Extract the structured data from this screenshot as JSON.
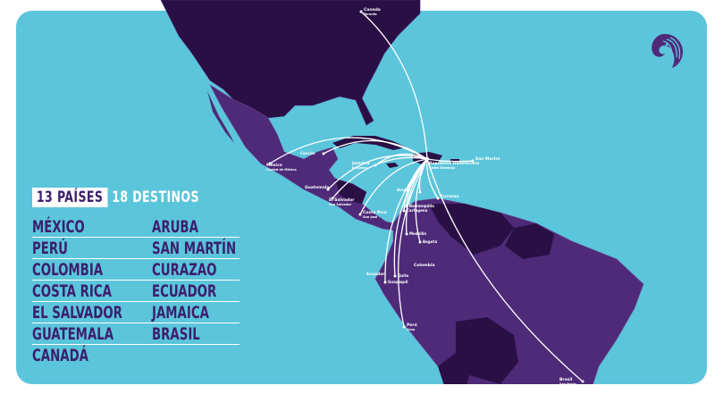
{
  "colors": {
    "ocean": "#5bc5db",
    "dark": "#2a0f45",
    "mid": "#4e2a78",
    "text": "#3d1e6d",
    "route": "#ffffff"
  },
  "summary": {
    "countries": "13 PAÍSES",
    "destinations": "18 DESTINOS"
  },
  "countries_list": [
    "MÉXICO",
    "PERÚ",
    "COLOMBIA",
    "COSTA RICA",
    "EL SALVADOR",
    "GUATEMALA",
    "CANADÁ"
  ],
  "countries_list_2": [
    "ARUBA",
    "SAN MARTÍN",
    "CURAZAO",
    "ECUADOR",
    "JAMAICA",
    "BRASIL"
  ],
  "hub": {
    "country": "República Dominicana",
    "city": "Santo Domingo"
  },
  "map_labels": [
    {
      "id": "canada",
      "country": "Canada",
      "city": "Toronto"
    },
    {
      "id": "mexico",
      "country": "México",
      "city": "Ciudad de México"
    },
    {
      "id": "cancun",
      "country": "",
      "city": "Cancún"
    },
    {
      "id": "guatemala",
      "country": "Guatemala",
      "city": ""
    },
    {
      "id": "salvador",
      "country": "El Salvador",
      "city": "San Salvador"
    },
    {
      "id": "costarica",
      "country": "Costa Rica",
      "city": "San José"
    },
    {
      "id": "jamaica",
      "country": "Jamaica",
      "city": "Kingston"
    },
    {
      "id": "sanmartin",
      "country": "San Martín",
      "city": ""
    },
    {
      "id": "aruba",
      "country": "Aruba",
      "city": ""
    },
    {
      "id": "curazao",
      "country": "Curazao",
      "city": ""
    },
    {
      "id": "barranquilla",
      "country": "",
      "city": "Barranquilla"
    },
    {
      "id": "cartagena",
      "country": "",
      "city": "Cartagena"
    },
    {
      "id": "medellin",
      "country": "",
      "city": "Medellín"
    },
    {
      "id": "bogota",
      "country": "",
      "city": "Bogotá"
    },
    {
      "id": "colombia",
      "country": "Colombia",
      "city": ""
    },
    {
      "id": "ecuador",
      "country": "Ecuador",
      "city": ""
    },
    {
      "id": "quito",
      "country": "",
      "city": "Quito"
    },
    {
      "id": "guayaquil",
      "country": "",
      "city": "Guayaquil"
    },
    {
      "id": "peru",
      "country": "Perú",
      "city": "Lima"
    },
    {
      "id": "brasil",
      "country": "Brasil",
      "city": "Sao Paulo"
    }
  ],
  "logo": "parrot-logo"
}
